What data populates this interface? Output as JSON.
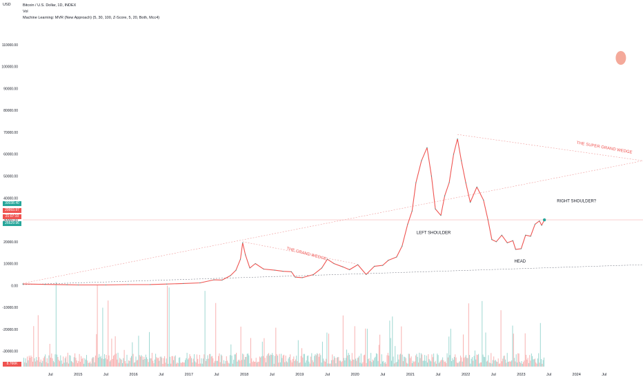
{
  "legend": {
    "symbol": "Bitcoin / U.S. Dollar, 1D, INDEX",
    "vol": "Vol",
    "indicator": "Machine Learning: MVR (New Approach) (5, 30, 100, Z-Score, 5, 20, Both, Mcc4)"
  },
  "currency": "USD",
  "price_tags": [
    {
      "label": "30038.40",
      "color": "#26a69a"
    },
    {
      "label": "29993.97",
      "color": "#ef5350"
    },
    {
      "label": "21:07:10",
      "color": "#ef5350"
    },
    {
      "label": "26629.96",
      "color": "#26a69a"
    }
  ],
  "volume_tag": {
    "label": "8.766K",
    "color": "#ef5350"
  },
  "chart_data": {
    "type": "line",
    "title": "",
    "xlabel": "",
    "ylabel": "",
    "y_ticks": [
      110000,
      100000,
      90000,
      80000,
      70000,
      60000,
      50000,
      40000,
      30000,
      20000,
      10000,
      0,
      -10000,
      -20000,
      -30000
    ],
    "y_tick_labels": [
      "110000.00",
      "100000.00",
      "90000.00",
      "80000.00",
      "70000.00",
      "60000.00",
      "50000.00",
      "40000.00",
      "30000.00",
      "20000.00",
      "10000.00",
      "0.00",
      "-10000.00",
      "-20000.00",
      "-30000.00"
    ],
    "ylim": [
      -38000,
      121000
    ],
    "x_range": [
      2014.0,
      2025.2
    ],
    "x_ticks": [
      {
        "t": 2014.5,
        "label": "Jul"
      },
      {
        "t": 2015.0,
        "label": "2015"
      },
      {
        "t": 2015.5,
        "label": "Jul"
      },
      {
        "t": 2016.0,
        "label": "2016"
      },
      {
        "t": 2016.5,
        "label": "Jul"
      },
      {
        "t": 2017.0,
        "label": "2017"
      },
      {
        "t": 2017.5,
        "label": "Jul"
      },
      {
        "t": 2018.0,
        "label": "2018"
      },
      {
        "t": 2018.5,
        "label": "Jul"
      },
      {
        "t": 2019.0,
        "label": "2019"
      },
      {
        "t": 2019.5,
        "label": "Jul"
      },
      {
        "t": 2020.0,
        "label": "2020"
      },
      {
        "t": 2020.5,
        "label": "Jul"
      },
      {
        "t": 2021.0,
        "label": "2021"
      },
      {
        "t": 2021.5,
        "label": "Jul"
      },
      {
        "t": 2022.0,
        "label": "2022"
      },
      {
        "t": 2022.5,
        "label": "Jul"
      },
      {
        "t": 2023.0,
        "label": "2023"
      },
      {
        "t": 2023.5,
        "label": "Jul"
      },
      {
        "t": 2024.0,
        "label": "2024"
      },
      {
        "t": 2024.5,
        "label": "Jul"
      }
    ],
    "grid": false,
    "series": [
      {
        "color": "#ef5350",
        "points": [
          [
            2014.0,
            700
          ],
          [
            2014.4,
            500
          ],
          [
            2014.8,
            350
          ],
          [
            2015.0,
            250
          ],
          [
            2015.5,
            250
          ],
          [
            2015.9,
            400
          ],
          [
            2016.3,
            430
          ],
          [
            2016.6,
            650
          ],
          [
            2016.9,
            900
          ],
          [
            2017.2,
            1200
          ],
          [
            2017.45,
            2600
          ],
          [
            2017.6,
            2500
          ],
          [
            2017.75,
            4500
          ],
          [
            2017.85,
            7000
          ],
          [
            2017.93,
            12000
          ],
          [
            2017.97,
            19500
          ],
          [
            2018.02,
            14000
          ],
          [
            2018.1,
            8000
          ],
          [
            2018.2,
            10000
          ],
          [
            2018.35,
            7500
          ],
          [
            2018.55,
            7000
          ],
          [
            2018.7,
            6500
          ],
          [
            2018.85,
            6300
          ],
          [
            2018.92,
            3800
          ],
          [
            2019.05,
            3600
          ],
          [
            2019.25,
            5000
          ],
          [
            2019.4,
            8000
          ],
          [
            2019.5,
            12000
          ],
          [
            2019.62,
            10000
          ],
          [
            2019.78,
            8500
          ],
          [
            2019.9,
            7200
          ],
          [
            2020.05,
            9500
          ],
          [
            2020.2,
            5000
          ],
          [
            2020.35,
            8800
          ],
          [
            2020.5,
            9200
          ],
          [
            2020.6,
            11500
          ],
          [
            2020.75,
            13000
          ],
          [
            2020.85,
            18000
          ],
          [
            2020.95,
            28000
          ],
          [
            2021.03,
            34000
          ],
          [
            2021.1,
            47000
          ],
          [
            2021.2,
            57000
          ],
          [
            2021.3,
            63000
          ],
          [
            2021.38,
            50000
          ],
          [
            2021.45,
            35000
          ],
          [
            2021.55,
            32000
          ],
          [
            2021.62,
            41000
          ],
          [
            2021.7,
            47000
          ],
          [
            2021.78,
            60000
          ],
          [
            2021.85,
            67000
          ],
          [
            2021.92,
            57000
          ],
          [
            2022.0,
            47000
          ],
          [
            2022.08,
            38000
          ],
          [
            2022.2,
            45000
          ],
          [
            2022.32,
            39000
          ],
          [
            2022.4,
            30000
          ],
          [
            2022.47,
            21000
          ],
          [
            2022.55,
            20000
          ],
          [
            2022.65,
            23000
          ],
          [
            2022.75,
            19500
          ],
          [
            2022.85,
            20500
          ],
          [
            2022.9,
            16500
          ],
          [
            2023.0,
            16800
          ],
          [
            2023.08,
            23000
          ],
          [
            2023.17,
            22500
          ],
          [
            2023.25,
            28000
          ],
          [
            2023.33,
            29500
          ],
          [
            2023.37,
            27500
          ],
          [
            2023.42,
            30000
          ]
        ]
      }
    ],
    "annotations": [
      {
        "text": "LEFT SHOULDER",
        "x": 2021.42,
        "y": 23500,
        "color": "#131722",
        "rotate": 0
      },
      {
        "text": "HEAD",
        "x": 2022.98,
        "y": 10500,
        "color": "#131722",
        "rotate": 0
      },
      {
        "text": "RIGHT SHOULDER?",
        "x": 2024.0,
        "y": 38000,
        "color": "#131722",
        "rotate": 0
      },
      {
        "text": "THE GRAND WEDGE",
        "x": 2019.12,
        "y": 14000,
        "color": "#ef5350",
        "rotate": 15
      },
      {
        "text": "THE SUPER GRAND WEDGE",
        "x": 2024.5,
        "y": 62500,
        "color": "#ef5350",
        "rotate": 10
      }
    ],
    "trend_lines": [
      {
        "from": [
          2014.0,
          1000
        ],
        "to": [
          2025.2,
          57000
        ],
        "color": "#ef9a9a",
        "dash": "2,2"
      },
      {
        "from": [
          2014.0,
          400
        ],
        "to": [
          2025.2,
          9500
        ],
        "color": "#787b86",
        "dash": "2,2"
      },
      {
        "from": [
          2017.97,
          20000
        ],
        "to": [
          2020.0,
          10000
        ],
        "color": "#ef9a9a",
        "dash": "2,2"
      },
      {
        "from": [
          2021.85,
          69000
        ],
        "to": [
          2025.2,
          57000
        ],
        "color": "#ef9a9a",
        "dash": "2,2"
      }
    ],
    "price_line": {
      "y": 30000,
      "color": "#ef5350"
    },
    "marker_circle": {
      "x": 2024.8,
      "y": 104000,
      "color": "#f4a99a"
    }
  }
}
